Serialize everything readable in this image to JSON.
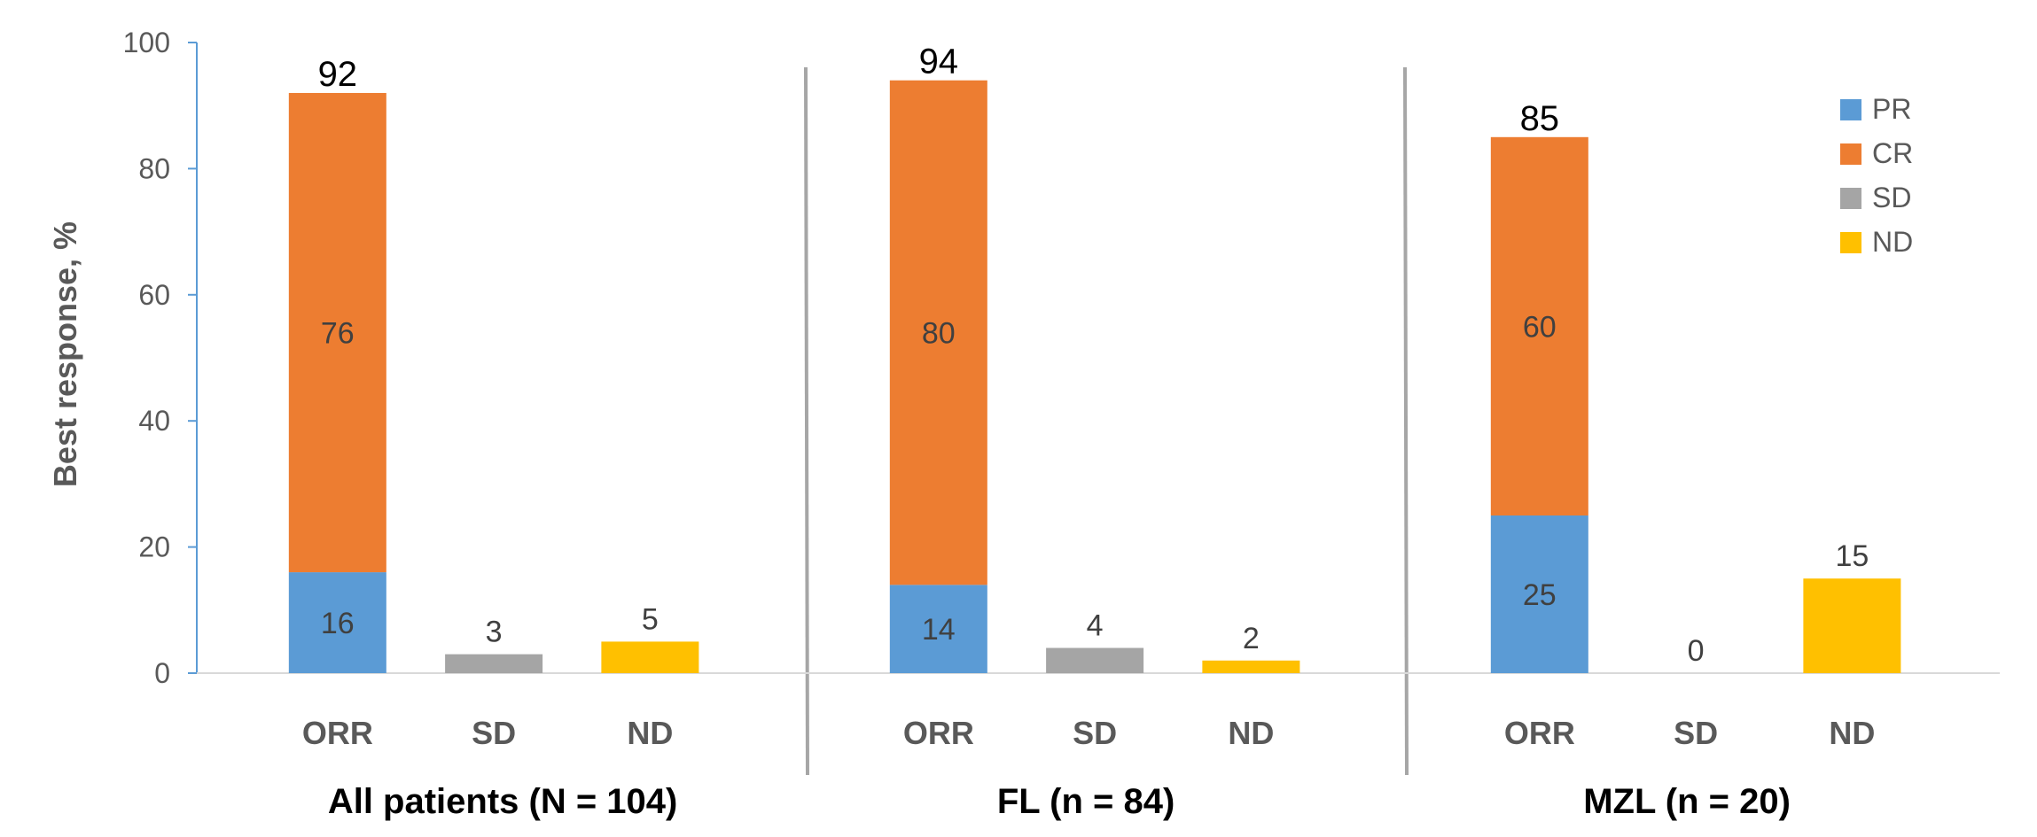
{
  "chart_data": {
    "type": "bar",
    "stacked": true,
    "ylabel": "Best response, %",
    "ylim": [
      0,
      100
    ],
    "yticks": [
      0,
      20,
      40,
      60,
      80,
      100
    ],
    "categories": [
      "ORR",
      "SD",
      "ND"
    ],
    "groups": [
      {
        "name": "All patients (N = 104)",
        "bars": [
          {
            "category": "ORR",
            "segments": [
              {
                "series": "PR",
                "value": 16
              },
              {
                "series": "CR",
                "value": 76
              }
            ],
            "total": 92
          },
          {
            "category": "SD",
            "segments": [
              {
                "series": "SD",
                "value": 3
              }
            ]
          },
          {
            "category": "ND",
            "segments": [
              {
                "series": "ND",
                "value": 5
              }
            ]
          }
        ]
      },
      {
        "name": "FL (n = 84)",
        "bars": [
          {
            "category": "ORR",
            "segments": [
              {
                "series": "PR",
                "value": 14
              },
              {
                "series": "CR",
                "value": 80
              }
            ],
            "total": 94
          },
          {
            "category": "SD",
            "segments": [
              {
                "series": "SD",
                "value": 4
              }
            ]
          },
          {
            "category": "ND",
            "segments": [
              {
                "series": "ND",
                "value": 2
              }
            ]
          }
        ]
      },
      {
        "name": "MZL (n = 20)",
        "bars": [
          {
            "category": "ORR",
            "segments": [
              {
                "series": "PR",
                "value": 25
              },
              {
                "series": "CR",
                "value": 60
              }
            ],
            "total": 85
          },
          {
            "category": "SD",
            "segments": [
              {
                "series": "SD",
                "value": 0
              }
            ]
          },
          {
            "category": "ND",
            "segments": [
              {
                "series": "ND",
                "value": 15
              }
            ]
          }
        ]
      }
    ],
    "series": [
      {
        "name": "PR",
        "color": "#5B9BD5"
      },
      {
        "name": "CR",
        "color": "#ED7D31"
      },
      {
        "name": "SD",
        "color": "#A5A5A5"
      },
      {
        "name": "ND",
        "color": "#FFC000"
      }
    ],
    "legend_position": "top-right",
    "grid": false
  }
}
